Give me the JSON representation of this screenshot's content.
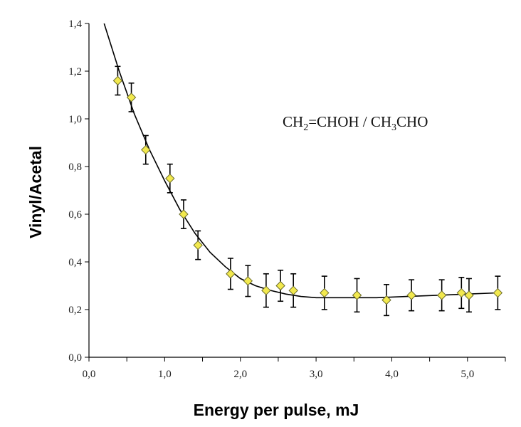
{
  "chart_data": {
    "type": "scatter",
    "title": "",
    "xlabel": "Energy per pulse, mJ",
    "ylabel": "Vinyl/Acetal",
    "xlim": [
      0.0,
      5.5
    ],
    "ylim": [
      0.0,
      1.4
    ],
    "x_ticks": [
      0.0,
      1.0,
      2.0,
      3.0,
      4.0,
      5.0
    ],
    "x_tick_labels": [
      "0,0",
      "1,0",
      "2,0",
      "3,0",
      "4,0",
      "5,0"
    ],
    "y_ticks": [
      0.0,
      0.2,
      0.4,
      0.6,
      0.8,
      1.0,
      1.2,
      1.4
    ],
    "y_tick_labels": [
      "0,0",
      "0,2",
      "0,4",
      "0,6",
      "0,8",
      "1,0",
      "1,2",
      "1,4"
    ],
    "grid": false,
    "annotation": {
      "parts": [
        {
          "text": "CH",
          "sub": false
        },
        {
          "text": "2",
          "sub": true
        },
        {
          "text": "=CHOH / CH",
          "sub": false
        },
        {
          "text": "3",
          "sub": true
        },
        {
          "text": "CHO",
          "sub": false
        }
      ]
    },
    "series": [
      {
        "name": "data",
        "marker_color": "#f2e94e",
        "x": [
          0.38,
          0.56,
          0.75,
          1.07,
          1.25,
          1.44,
          1.87,
          2.1,
          2.34,
          2.53,
          2.7,
          3.11,
          3.54,
          3.93,
          4.26,
          4.66,
          4.92,
          5.02,
          5.4
        ],
        "y": [
          1.16,
          1.09,
          0.87,
          0.75,
          0.6,
          0.47,
          0.35,
          0.32,
          0.28,
          0.3,
          0.28,
          0.27,
          0.26,
          0.24,
          0.26,
          0.26,
          0.27,
          0.26,
          0.27
        ],
        "error": [
          0.06,
          0.06,
          0.06,
          0.06,
          0.06,
          0.06,
          0.065,
          0.065,
          0.07,
          0.065,
          0.07,
          0.07,
          0.07,
          0.065,
          0.065,
          0.065,
          0.065,
          0.07,
          0.07
        ]
      },
      {
        "name": "fit",
        "line_color": "#000000",
        "x": [
          0.2,
          0.4,
          0.6,
          0.8,
          1.0,
          1.2,
          1.4,
          1.6,
          1.8,
          2.0,
          2.2,
          2.4,
          2.6,
          2.8,
          3.0,
          3.4,
          3.8,
          4.2,
          4.6,
          5.0,
          5.4
        ],
        "y": [
          1.4,
          1.2,
          1.02,
          0.87,
          0.74,
          0.62,
          0.52,
          0.44,
          0.38,
          0.33,
          0.3,
          0.28,
          0.265,
          0.255,
          0.25,
          0.25,
          0.25,
          0.255,
          0.26,
          0.265,
          0.27
        ]
      }
    ]
  }
}
